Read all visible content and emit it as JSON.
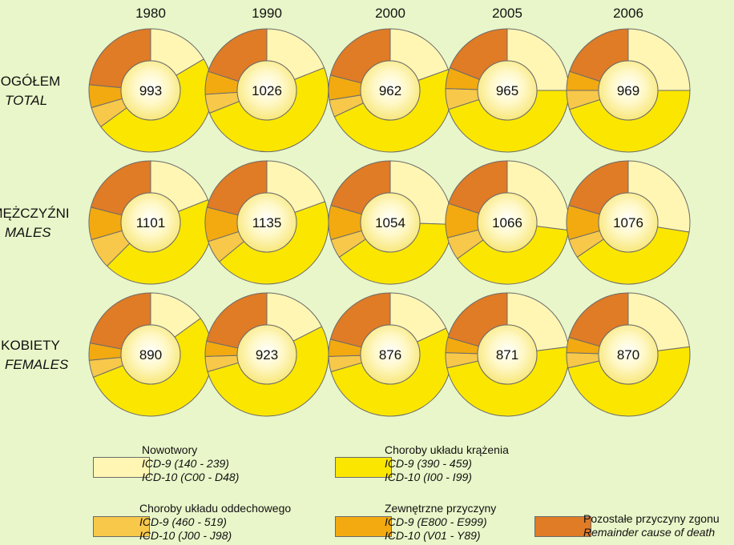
{
  "colors": {
    "background": "#e9f6c9",
    "nowotwory": "#fff6b3",
    "krazenia": "#fbe600",
    "oddechowego": "#f7c84a",
    "zewnetrzne": "#f2aa10",
    "pozostale": "#e07b26",
    "stroke": "#6b6b6b"
  },
  "chart_data": {
    "type": "pie",
    "variant": "donut-grid",
    "years": [
      "1980",
      "1990",
      "2000",
      "2005",
      "2006"
    ],
    "rows": [
      {
        "key": "total",
        "label_pl": "OGÓŁEM",
        "label_en": "TOTAL",
        "center_values": [
          993,
          1026,
          962,
          965,
          969
        ],
        "shares": [
          [
            16.5,
            48.5,
            5.5,
            6.0,
            23.5
          ],
          [
            19.0,
            50.0,
            5.0,
            6.0,
            20.0
          ],
          [
            19.5,
            48.5,
            4.5,
            6.5,
            21.0
          ],
          [
            25.0,
            45.0,
            5.5,
            5.5,
            19.0
          ],
          [
            25.0,
            45.0,
            5.0,
            5.0,
            20.0
          ]
        ]
      },
      {
        "key": "males",
        "label_pl": "MĘŻCZYŹNI",
        "label_en": "MALES",
        "center_values": [
          1101,
          1135,
          1054,
          1066,
          1076
        ],
        "shares": [
          [
            19.0,
            43.5,
            8.0,
            8.5,
            21.0
          ],
          [
            19.5,
            44.5,
            6.0,
            9.0,
            21.0
          ],
          [
            25.5,
            40.0,
            5.0,
            9.0,
            20.5
          ],
          [
            27.0,
            38.0,
            6.0,
            9.0,
            20.0
          ],
          [
            27.5,
            38.0,
            5.0,
            9.0,
            20.5
          ]
        ]
      },
      {
        "key": "females",
        "label_pl": "KOBIETY",
        "label_en": "FEMALES",
        "center_values": [
          890,
          923,
          876,
          871,
          870
        ],
        "shares": [
          [
            15.0,
            54.0,
            4.5,
            4.5,
            22.0
          ],
          [
            17.5,
            53.0,
            4.0,
            4.0,
            21.5
          ],
          [
            18.0,
            52.5,
            4.0,
            4.5,
            21.0
          ],
          [
            23.0,
            48.5,
            4.0,
            4.0,
            20.5
          ],
          [
            23.0,
            48.5,
            4.0,
            4.0,
            20.5
          ]
        ]
      }
    ],
    "categories": [
      {
        "key": "nowotwory",
        "pl": "Nowotwory",
        "icd9": "ICD-9 (140 - 239)",
        "icd10": "ICD-10 (C00 - D48)"
      },
      {
        "key": "krazenia",
        "pl": "Choroby układu krążenia",
        "icd9": "ICD-9 (390 - 459)",
        "icd10": "ICD-10 (I00 - I99)"
      },
      {
        "key": "oddechowego",
        "pl": "Choroby układu oddechowego",
        "icd9": "ICD-9 (460 - 519)",
        "icd10": "ICD-10 (J00 - J98)"
      },
      {
        "key": "zewnetrzne",
        "pl": "Zewnętrzne przyczyny",
        "icd9": "ICD-9 (E800 - E999)",
        "icd10": "ICD-10 (V01 - Y89)"
      },
      {
        "key": "pozostale",
        "pl": "Pozostałe przyczyny zgonu",
        "en": "Remainder cause of death"
      }
    ]
  }
}
